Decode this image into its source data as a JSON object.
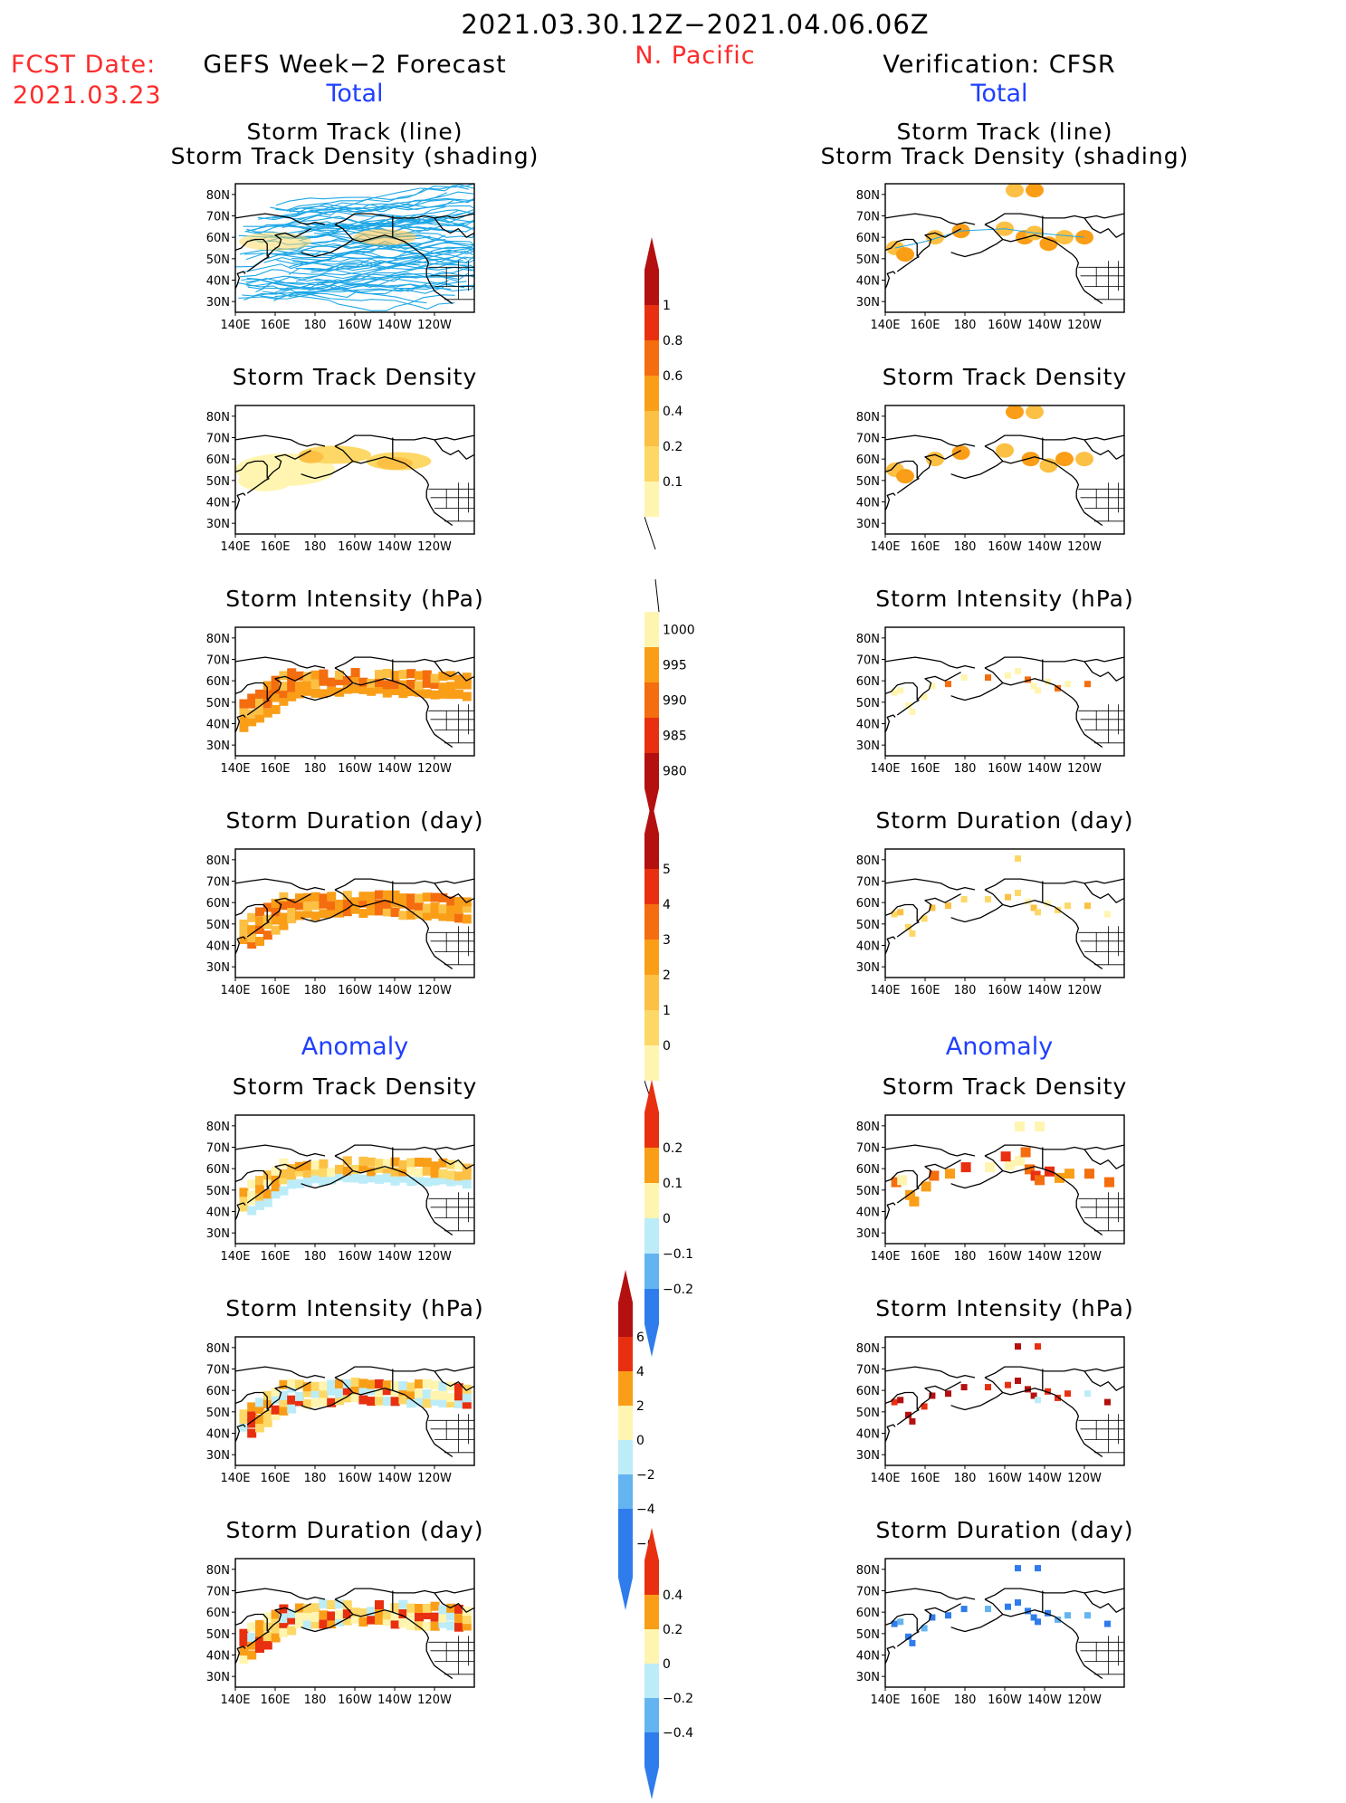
{
  "header": {
    "title": "2021.03.30.12Z−2021.04.06.06Z",
    "region": "N. Pacific",
    "fcst_label": "FCST Date:",
    "fcst_date": "2021.03.23",
    "left_title": "GEFS Week−2 Forecast",
    "right_title": "Verification: CFSR",
    "left_sub": "Total",
    "right_sub": "Total"
  },
  "sections": {
    "anomaly_left": "Anomaly",
    "anomaly_right": "Anomaly"
  },
  "panel_titles": {
    "track_line_1": "Storm Track (line)",
    "track_line_2": "Storm Track Density (shading)",
    "density": "Storm Track Density",
    "intensity": "Storm Intensity (hPa)",
    "duration": "Storm Duration (day)"
  },
  "axes": {
    "lat_labels": [
      "80N",
      "70N",
      "60N",
      "50N",
      "40N",
      "30N"
    ],
    "lon_labels": [
      "140E",
      "160E",
      "180",
      "160W",
      "140W",
      "120W"
    ]
  },
  "colorbars": {
    "density": [
      "1",
      "0.8",
      "0.6",
      "0.4",
      "0.2",
      "0.1"
    ],
    "intensity": [
      "1000",
      "995",
      "990",
      "985",
      "980"
    ],
    "duration": [
      "5",
      "4",
      "3",
      "2",
      "1",
      "0"
    ],
    "density_anom": [
      "0.2",
      "0.1",
      "0",
      "−0.1",
      "−0.2"
    ],
    "intensity_anom": [
      "6",
      "4",
      "2",
      "0",
      "−2",
      "−4",
      "−6"
    ],
    "duration_anom": [
      "0.4",
      "0.2",
      "0",
      "−0.2",
      "−0.4"
    ]
  },
  "colors": {
    "light_yellow": "#fff5b0",
    "yellow": "#fdd866",
    "light_orange": "#fcc044",
    "orange": "#fa9e18",
    "dark_orange": "#f46d0e",
    "red": "#e83010",
    "dark_red": "#b41010",
    "track_blue": "#1ea7e6",
    "light_blue": "#bcecf8",
    "mid_blue": "#63b4f0",
    "blue": "#2f7cec"
  }
}
